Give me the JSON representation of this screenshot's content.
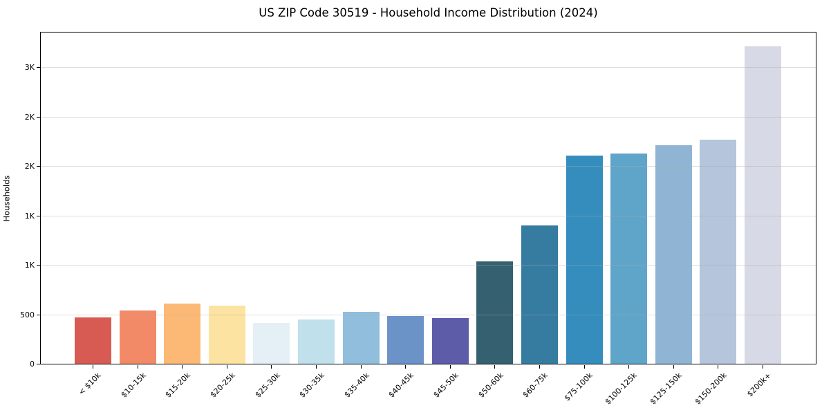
{
  "page": {
    "background": "#ffffff"
  },
  "chart_data": {
    "type": "bar",
    "title": "US ZIP Code 30519 - Household Income Distribution (2024)",
    "xlabel": "",
    "ylabel": "Households",
    "categories": [
      "< $10k",
      "$10-15k",
      "$15-20k",
      "$20-25k",
      "$25-30k",
      "$30-35k",
      "$35-40k",
      "$40-45k",
      "$45-50k",
      "$50-60k",
      "$60-75k",
      "$75-100k",
      "$100-125k",
      "$125-150k",
      "$150-200k",
      "$200k+"
    ],
    "values": [
      470,
      540,
      610,
      590,
      410,
      445,
      525,
      485,
      465,
      1035,
      1400,
      2105,
      2130,
      2210,
      2265,
      3210
    ],
    "bar_colors": [
      "#d75b52",
      "#f28a68",
      "#fcb976",
      "#fde3a1",
      "#e4f0f6",
      "#c0e0ec",
      "#92bedd",
      "#6b93c8",
      "#5d5ca9",
      "#35606f",
      "#367ba0",
      "#358dbe",
      "#5fa5c9",
      "#90b5d4",
      "#b4c5dc",
      "#d8d9e6"
    ],
    "ylim": [
      0,
      3366
    ],
    "yticks": {
      "values": [
        0,
        500,
        1000,
        1500,
        2000,
        2500,
        3000
      ],
      "labels": [
        "0",
        "500",
        "1K",
        "1K",
        "2K",
        "2K",
        "3K"
      ]
    },
    "grid": "horizontal-only, light gray, drawn over bars",
    "legend": "none",
    "spines": "black border on all four sides"
  }
}
